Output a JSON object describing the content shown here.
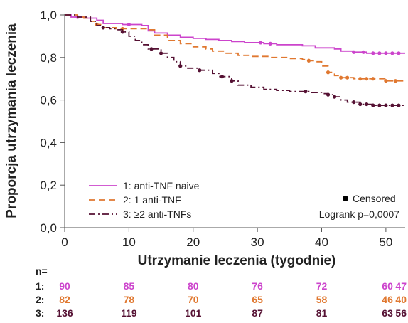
{
  "chart_data": {
    "type": "line",
    "xlabel": "Utrzymanie leczenia (tygodnie)",
    "ylabel": "Proporcja utrzymania leczenia",
    "xlim": [
      0,
      53
    ],
    "ylim": [
      0,
      1
    ],
    "xticks": [
      "0",
      "10",
      "20",
      "30",
      "40",
      "50"
    ],
    "yticks": [
      "0,0",
      "0,2",
      "0,4",
      "0,6",
      "0,8",
      "1,0"
    ],
    "series": [
      {
        "name": "1: anti-TNF naive",
        "color": "#cc44cc",
        "dash": "solid",
        "x": [
          0,
          1,
          3,
          5,
          6,
          9,
          12,
          13,
          14,
          16,
          18,
          20,
          22,
          24,
          26,
          28,
          31,
          33,
          35,
          37,
          39,
          42,
          43,
          45,
          47,
          50,
          53
        ],
        "y": [
          1.0,
          0.99,
          0.985,
          0.975,
          0.96,
          0.955,
          0.95,
          0.925,
          0.915,
          0.905,
          0.895,
          0.89,
          0.885,
          0.88,
          0.875,
          0.87,
          0.865,
          0.86,
          0.86,
          0.855,
          0.845,
          0.84,
          0.83,
          0.825,
          0.82,
          0.82,
          0.82
        ],
        "censored_x": [
          2,
          10,
          30.5,
          32,
          45,
          46.5,
          48,
          49,
          50,
          51,
          52
        ]
      },
      {
        "name": "2: 1 anti-TNF",
        "color": "#e07830",
        "dash": "dashed",
        "x": [
          0,
          2,
          3,
          4,
          5,
          6,
          8,
          13,
          14,
          16,
          18,
          20,
          22,
          23,
          25,
          27,
          29,
          32,
          35,
          37,
          38,
          39,
          40,
          41,
          42,
          43,
          45,
          48,
          50,
          53
        ],
        "y": [
          1.0,
          0.99,
          0.985,
          0.97,
          0.955,
          0.94,
          0.935,
          0.93,
          0.905,
          0.88,
          0.865,
          0.85,
          0.84,
          0.83,
          0.82,
          0.81,
          0.805,
          0.8,
          0.795,
          0.79,
          0.785,
          0.78,
          0.76,
          0.73,
          0.715,
          0.705,
          0.7,
          0.7,
          0.69,
          0.69
        ],
        "censored_x": [
          5,
          9,
          38,
          41,
          43,
          44,
          46,
          47,
          48,
          50,
          51.5
        ]
      },
      {
        "name": "3: ≥2 anti-TNFs",
        "color": "#551133",
        "dash": "dashdot",
        "x": [
          0,
          2,
          4,
          5,
          6,
          7,
          8,
          9,
          10,
          11,
          12,
          13,
          15,
          16,
          17,
          18,
          19,
          21,
          23,
          24,
          26,
          27,
          29,
          31,
          33,
          35,
          37,
          38,
          40,
          41,
          42,
          43,
          44,
          46,
          48,
          50,
          53
        ],
        "y": [
          1.0,
          0.99,
          0.97,
          0.95,
          0.94,
          0.935,
          0.93,
          0.92,
          0.9,
          0.88,
          0.86,
          0.84,
          0.82,
          0.8,
          0.78,
          0.76,
          0.75,
          0.74,
          0.725,
          0.71,
          0.69,
          0.67,
          0.66,
          0.65,
          0.645,
          0.64,
          0.64,
          0.635,
          0.63,
          0.625,
          0.615,
          0.6,
          0.59,
          0.58,
          0.575,
          0.575,
          0.575
        ],
        "censored_x": [
          6,
          9,
          13.5,
          15,
          18,
          21,
          24.5,
          26,
          37.5,
          41,
          42,
          45,
          46,
          47,
          48,
          49,
          50,
          51,
          52
        ]
      }
    ],
    "censored_label": "Censored",
    "logrank": "Logrank p=0,0007",
    "risk_table": {
      "header": "n=",
      "x": [
        0,
        10,
        20,
        30,
        40,
        50,
        53
      ],
      "rows": [
        {
          "label": "1:",
          "color": "#cc44cc",
          "values": [
            "90",
            "85",
            "80",
            "76",
            "72",
            "60",
            "47"
          ]
        },
        {
          "label": "2:",
          "color": "#e07830",
          "values": [
            "82",
            "78",
            "70",
            "65",
            "58",
            "46",
            "40"
          ]
        },
        {
          "label": "3:",
          "color": "#551133",
          "values": [
            "136",
            "119",
            "101",
            "87",
            "81",
            "63",
            "56"
          ]
        }
      ]
    }
  }
}
